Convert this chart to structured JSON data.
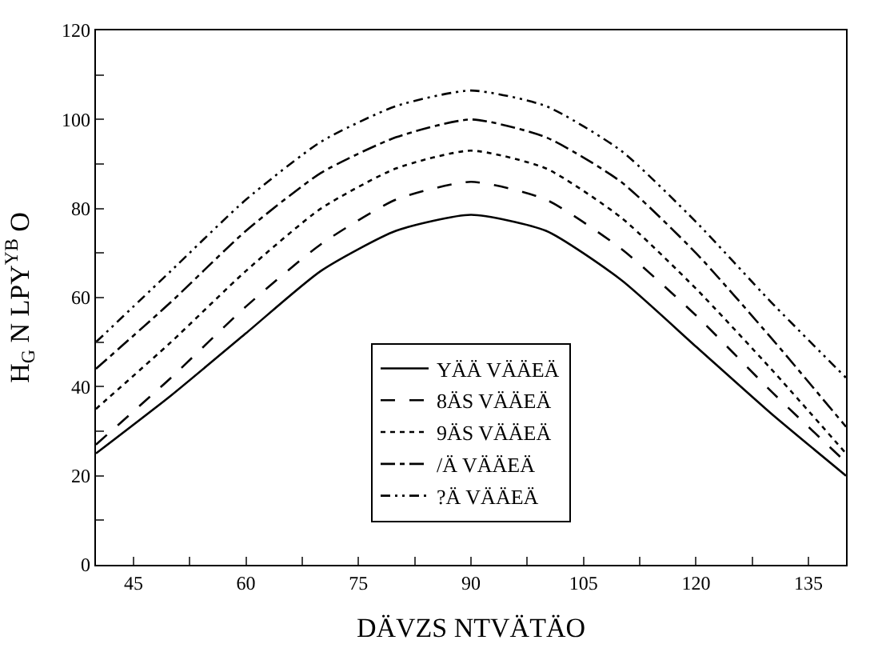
{
  "chart_data": {
    "type": "line",
    "xlabel": "DÄVZS NTVÄTÄO",
    "ylabel": "H$_{G}$ N LPY$^{YB}$ O",
    "x": [
      40,
      50,
      60,
      70,
      80,
      90,
      100,
      110,
      120,
      130,
      140
    ],
    "series": [
      {
        "name": "YÄÄ VÄÄEÄ",
        "color": "#000000",
        "line_style": "solid",
        "values": [
          25,
          38,
          52,
          66,
          75,
          78.6,
          75,
          64,
          49,
          34,
          20
        ]
      },
      {
        "name": "8ÄS VÄÄEÄ",
        "color": "#000000",
        "line_style": "dashed",
        "values": [
          27,
          42,
          58,
          72,
          82,
          86,
          82,
          71,
          56,
          39,
          23
        ]
      },
      {
        "name": "9ÄS VÄÄEÄ",
        "color": "#000000",
        "line_style": "dotted",
        "values": [
          35,
          50,
          66,
          80,
          89,
          93,
          89,
          78,
          62,
          44,
          25
        ]
      },
      {
        "name": "/Ä VÄÄEÄ",
        "color": "#000000",
        "line_style": "dashdot",
        "values": [
          44,
          59,
          75,
          88,
          96,
          100,
          96,
          86,
          70,
          51,
          31
        ]
      },
      {
        "name": "?Ä VÄÄEÄ",
        "color": "#000000",
        "line_style": "dashdotdot",
        "values": [
          50,
          66,
          82,
          95,
          103,
          106.5,
          103,
          93,
          77,
          59,
          42
        ]
      }
    ],
    "xlim": [
      40,
      140
    ],
    "ylim": [
      0,
      120
    ],
    "xticks": [
      45,
      {
        "value": 52.5,
        "label": null
      },
      60,
      {
        "value": 67.5,
        "label": null
      },
      75,
      {
        "value": 82.5,
        "label": null
      },
      90,
      {
        "value": 97.5,
        "label": null
      },
      105,
      {
        "value": 112.5,
        "label": null
      },
      120,
      {
        "value": 127.5,
        "label": null
      },
      135
    ],
    "yticks": [
      0,
      {
        "value": 10,
        "label": null
      },
      20,
      {
        "value": 30,
        "label": null
      },
      40,
      {
        "value": 50,
        "label": null
      },
      60,
      {
        "value": 70,
        "label": null
      },
      80,
      {
        "value": 90,
        "label": null
      },
      100,
      {
        "value": 110,
        "label": null
      },
      120
    ],
    "grid": false,
    "legend": "bottom",
    "marker": "none"
  }
}
